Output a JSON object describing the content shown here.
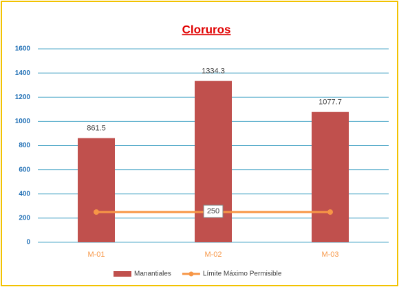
{
  "chart_data": {
    "type": "bar",
    "title": "Cloruros",
    "categories": [
      "M-01",
      "M-02",
      "M-03"
    ],
    "series": [
      {
        "name": "Manantiales",
        "type": "bar",
        "color": "#c0504d",
        "values": [
          861.5,
          1334.3,
          1077.7
        ]
      },
      {
        "name": "Límite Máximo Permisible",
        "type": "line",
        "color": "#f79646",
        "values": [
          250,
          250,
          250
        ],
        "value_labels": [
          null,
          "250",
          null
        ]
      }
    ],
    "ylim": [
      0,
      1600
    ],
    "yticks": [
      0,
      200,
      400,
      600,
      800,
      1000,
      1200,
      1400,
      1600
    ],
    "grid": true,
    "legend": "bottom"
  }
}
